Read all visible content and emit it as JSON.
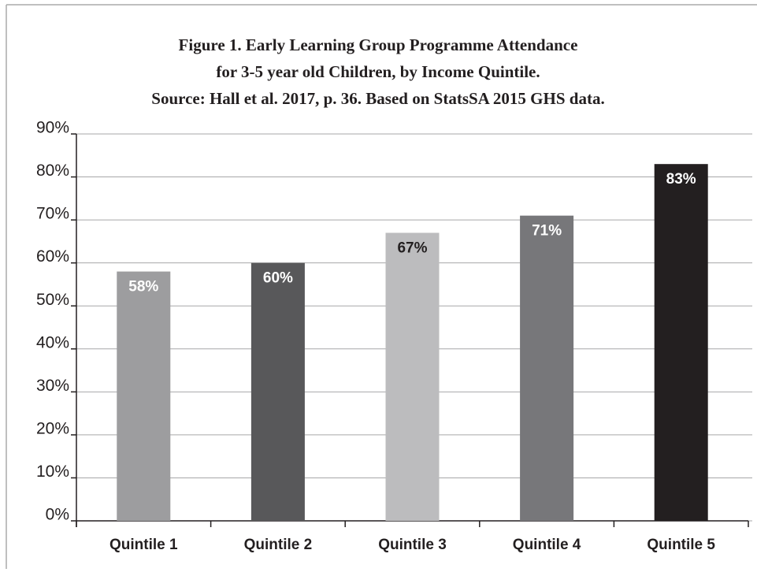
{
  "chart_data": {
    "type": "bar",
    "title": [
      "Figure 1. Early Learning Group Programme Attendance",
      "for 3-5 year old Children, by Income Quintile.",
      "Source: Hall et al. 2017, p. 36. Based on StatsSA 2015 GHS data."
    ],
    "categories": [
      "Quintile 1",
      "Quintile 2",
      "Quintile 3",
      "Quintile 4",
      "Quintile 5"
    ],
    "values": [
      58,
      60,
      67,
      71,
      83
    ],
    "value_labels": [
      "58%",
      "60%",
      "67%",
      "71%",
      "83%"
    ],
    "colors": [
      "#9d9d9f",
      "#58585a",
      "#bcbcbe",
      "#77777a",
      "#231f20"
    ],
    "value_label_colors": [
      "#ffffff",
      "#ffffff",
      "#231f20",
      "#ffffff",
      "#ffffff"
    ],
    "ylim": [
      0,
      90
    ],
    "yticks": [
      {
        "value": 0,
        "label": "0%"
      },
      {
        "value": 10,
        "label": "10%"
      },
      {
        "value": 20,
        "label": "20%"
      },
      {
        "value": 30,
        "label": "30%"
      },
      {
        "value": 40,
        "label": "40%"
      },
      {
        "value": 50,
        "label": "50%"
      },
      {
        "value": 60,
        "label": "60%"
      },
      {
        "value": 70,
        "label": "70%"
      },
      {
        "value": 80,
        "label": "80%"
      },
      {
        "value": 90,
        "label": "90%"
      }
    ],
    "grid": true
  }
}
